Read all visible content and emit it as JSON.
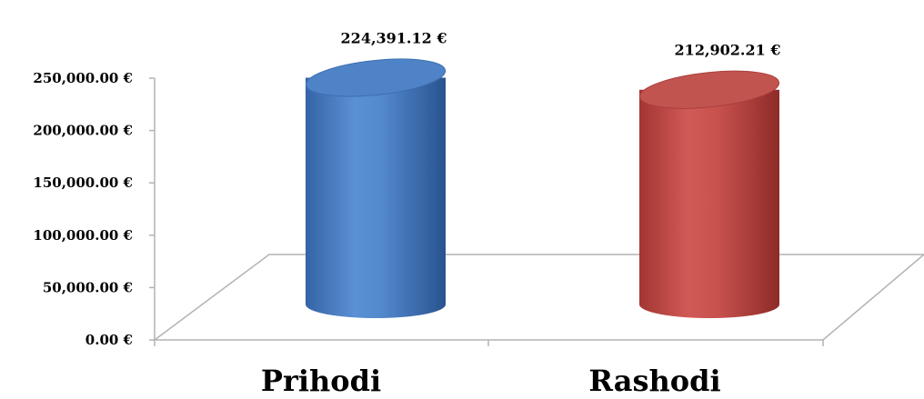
{
  "chart_data": {
    "type": "bar",
    "style": "3d-cylinder",
    "categories": [
      "Prihodi",
      "Rashodi"
    ],
    "values": [
      224391.12,
      212902.21
    ],
    "data_labels": [
      "224,391.12 €",
      "212,902.21 €"
    ],
    "colors": [
      "#4a7fc1",
      "#c0504d"
    ],
    "ylim": [
      0,
      250000
    ],
    "yticks": [
      "0.00 €",
      "50,000.00 €",
      "100,000.00 €",
      "150,000.00 €",
      "200,000.00 €",
      "250,000.00 €"
    ],
    "grid": false,
    "legend": "none"
  }
}
